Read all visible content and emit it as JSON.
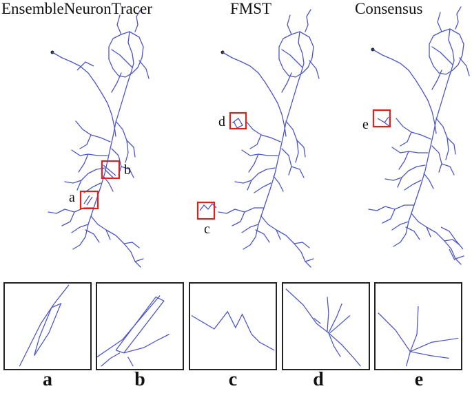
{
  "titles": {
    "ensemble": "EnsembleNeuronTracer",
    "fmst": "FMST",
    "consensus": "Consensus"
  },
  "box_labels": {
    "a": "a",
    "b": "b",
    "c": "c",
    "d": "d",
    "e": "e"
  },
  "panel_labels": [
    "a",
    "b",
    "c",
    "d",
    "e"
  ],
  "colors": {
    "trace": "#4a55c8",
    "highlight": "#e0201c",
    "frame": "#222222"
  }
}
